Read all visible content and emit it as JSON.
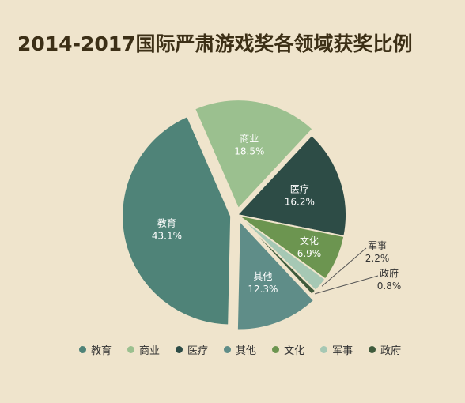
{
  "page": {
    "title": "2014-2017国际严肃游戏奖各领域获奖比例"
  },
  "chart_data": {
    "type": "pie",
    "title": "2014-2017国际严肃游戏奖各领域获奖比例",
    "legend_position": "bottom",
    "slices": [
      {
        "name": "教育",
        "value": 43.1,
        "label": "43.1%",
        "color": "#4f8378",
        "exploded": true
      },
      {
        "name": "商业",
        "value": 18.5,
        "label": "18.5%",
        "color": "#9bc08f",
        "exploded": true
      },
      {
        "name": "医疗",
        "value": 16.2,
        "label": "16.2%",
        "color": "#2d4c46",
        "exploded": false
      },
      {
        "name": "其他",
        "value": 12.3,
        "label": "12.3%",
        "color": "#5f8d88",
        "exploded": true
      },
      {
        "name": "文化",
        "value": 6.9,
        "label": "6.9%",
        "color": "#6c9550",
        "exploded": false
      },
      {
        "name": "军事",
        "value": 2.2,
        "label": "2.2%",
        "color": "#a6c8b4",
        "exploded": false
      },
      {
        "name": "政府",
        "value": 0.8,
        "label": "0.8%",
        "color": "#3f5b3c",
        "exploded": false
      }
    ]
  }
}
